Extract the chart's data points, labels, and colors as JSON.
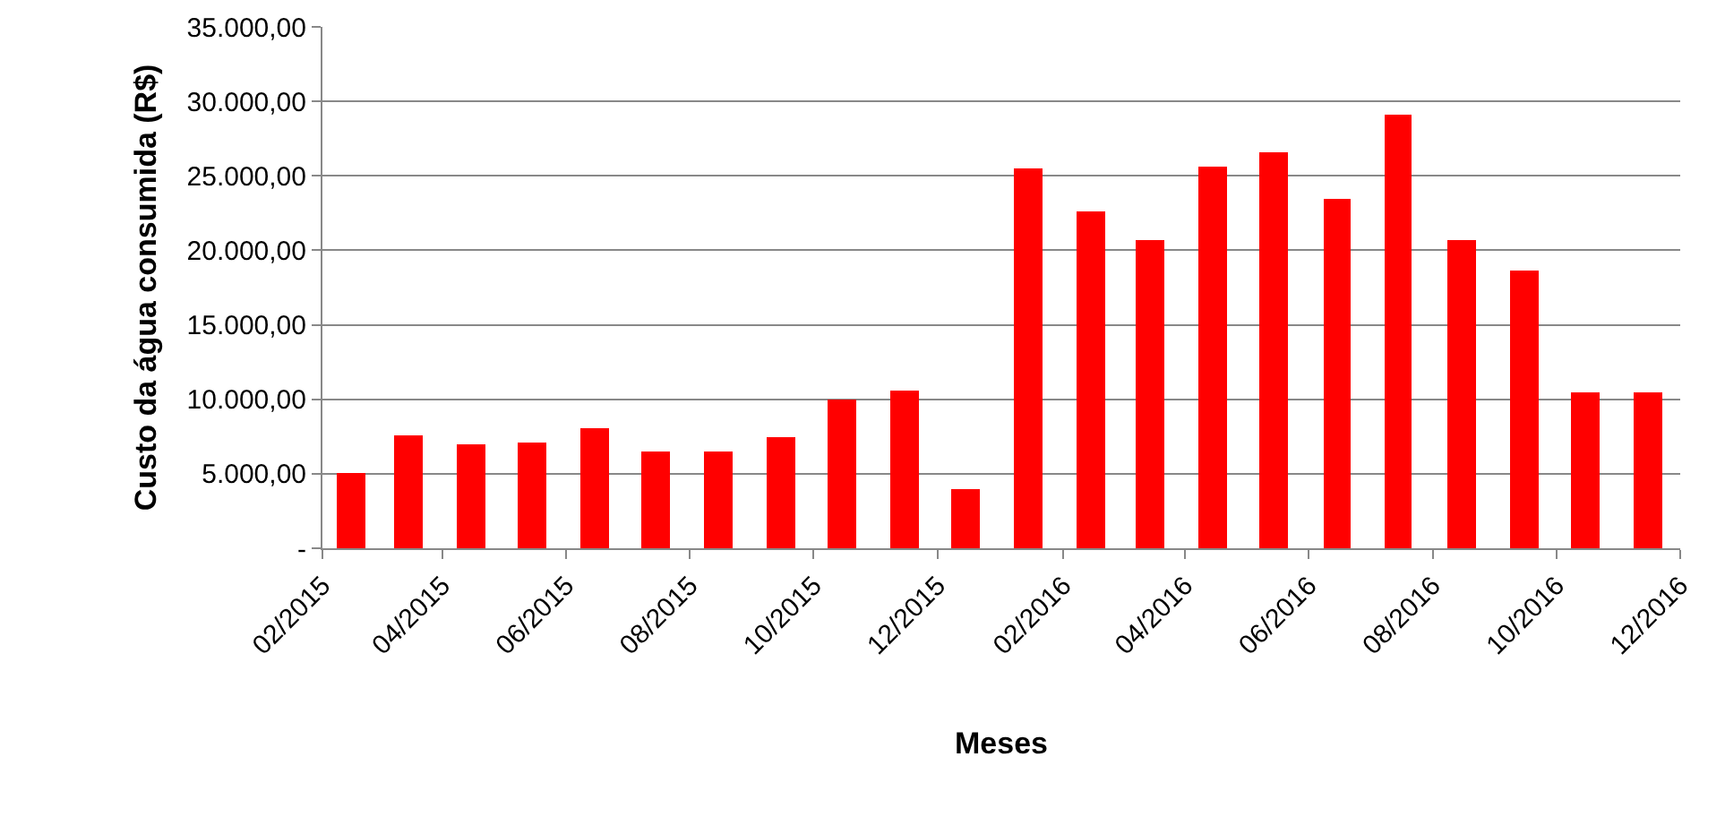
{
  "chart_data": {
    "type": "bar",
    "xlabel": "Meses",
    "ylabel": "Custo da água consumida (R$)",
    "x": [
      "2015-02-15",
      "2015-03-15",
      "2015-04-15",
      "2015-05-15",
      "2015-06-15",
      "2015-07-15",
      "2015-08-15",
      "2015-09-15",
      "2015-10-15",
      "2015-11-15",
      "2015-12-15",
      "2016-01-15",
      "2016-02-15",
      "2016-03-15",
      "2016-04-15",
      "2016-05-15",
      "2016-06-15",
      "2016-07-15",
      "2016-08-15",
      "2016-09-15",
      "2016-10-15",
      "2016-11-15"
    ],
    "values": [
      5100,
      7600,
      7000,
      7100,
      8000,
      6500,
      6500,
      7400,
      10000,
      10600,
      4000,
      25500,
      22600,
      20700,
      25600,
      26600,
      23500,
      29100,
      20700,
      18600,
      10500,
      10500
    ],
    "color": "#ff0000",
    "xlim": [
      "2015-02-01",
      "2016-12-01"
    ],
    "xticks": [
      {
        "value": "2015-02-01",
        "label": "02/2015"
      },
      {
        "value": "2015-04-01",
        "label": "04/2015"
      },
      {
        "value": "2015-06-01",
        "label": "06/2015"
      },
      {
        "value": "2015-08-01",
        "label": "08/2015"
      },
      {
        "value": "2015-10-01",
        "label": "10/2015"
      },
      {
        "value": "2015-12-01",
        "label": "12/2015"
      },
      {
        "value": "2016-02-01",
        "label": "02/2016"
      },
      {
        "value": "2016-04-01",
        "label": "04/2016"
      },
      {
        "value": "2016-06-01",
        "label": "06/2016"
      },
      {
        "value": "2016-08-01",
        "label": "08/2016"
      },
      {
        "value": "2016-10-01",
        "label": "10/2016"
      },
      {
        "value": "2016-12-01",
        "label": "12/2016"
      }
    ],
    "ylim": [
      0,
      35000
    ],
    "yticks": [
      {
        "value": 0,
        "label": "-"
      },
      {
        "value": 5000,
        "label": "5.000,00"
      },
      {
        "value": 10000,
        "label": "10.000,00"
      },
      {
        "value": 15000,
        "label": "15.000,00"
      },
      {
        "value": 20000,
        "label": "20.000,00"
      },
      {
        "value": 25000,
        "label": "25.000,00"
      },
      {
        "value": 30000,
        "label": "30.000,00"
      },
      {
        "value": 35000,
        "label": "35.000,00"
      }
    ],
    "grid": "y"
  }
}
